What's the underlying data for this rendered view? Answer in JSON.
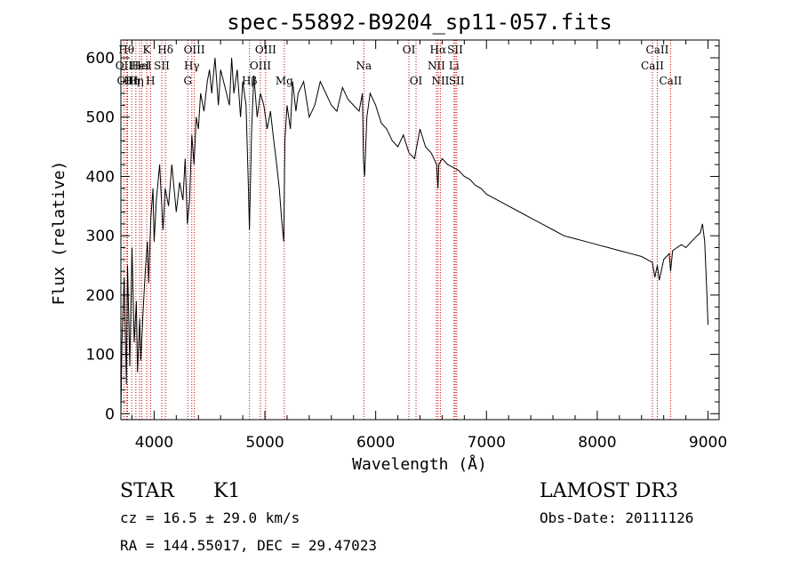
{
  "chart_data": {
    "type": "line",
    "title": "spec-55892-B9204_sp11-057.fits",
    "xlabel": "Wavelength (Å)",
    "ylabel": "Flux (relative)",
    "xlim": [
      3700,
      9100
    ],
    "ylim": [
      -10,
      630
    ],
    "xticks": [
      4000,
      5000,
      6000,
      7000,
      8000,
      9000
    ],
    "yticks": [
      0,
      100,
      200,
      300,
      400,
      500,
      600
    ],
    "grid": false,
    "series": [
      {
        "color": "#000000",
        "x": [
          3700,
          3710,
          3730,
          3750,
          3760,
          3780,
          3800,
          3820,
          3840,
          3850,
          3870,
          3880,
          3900,
          3920,
          3940,
          3950,
          3970,
          3990,
          4000,
          4020,
          4050,
          4080,
          4100,
          4130,
          4160,
          4200,
          4230,
          4260,
          4280,
          4300,
          4320,
          4340,
          4360,
          4380,
          4400,
          4420,
          4450,
          4480,
          4500,
          4520,
          4550,
          4580,
          4600,
          4640,
          4680,
          4700,
          4720,
          4750,
          4780,
          4800,
          4830,
          4850,
          4860,
          4880,
          4900,
          4930,
          4960,
          4990,
          5020,
          5050,
          5080,
          5100,
          5130,
          5150,
          5170,
          5180,
          5200,
          5230,
          5250,
          5280,
          5300,
          5350,
          5400,
          5450,
          5500,
          5550,
          5600,
          5650,
          5700,
          5750,
          5800,
          5850,
          5880,
          5890,
          5900,
          5920,
          5950,
          6000,
          6050,
          6100,
          6150,
          6200,
          6250,
          6300,
          6350,
          6400,
          6450,
          6500,
          6550,
          6562,
          6570,
          6600,
          6650,
          6700,
          6750,
          6800,
          6850,
          6900,
          6950,
          7000,
          7100,
          7200,
          7300,
          7400,
          7500,
          7600,
          7700,
          7800,
          7900,
          8000,
          8100,
          8200,
          8300,
          8400,
          8450,
          8498,
          8520,
          8542,
          8560,
          8600,
          8650,
          8662,
          8680,
          8720,
          8760,
          8800,
          8850,
          8900,
          8930,
          8950,
          8970,
          8990,
          9000
        ],
        "y": [
          0,
          120,
          230,
          50,
          250,
          80,
          280,
          120,
          190,
          70,
          160,
          90,
          170,
          240,
          290,
          220,
          330,
          380,
          290,
          360,
          420,
          310,
          380,
          350,
          420,
          340,
          390,
          360,
          430,
          320,
          360,
          470,
          420,
          500,
          480,
          540,
          510,
          560,
          580,
          540,
          600,
          520,
          580,
          550,
          520,
          600,
          540,
          580,
          500,
          560,
          520,
          390,
          310,
          480,
          570,
          500,
          540,
          520,
          480,
          510,
          460,
          430,
          380,
          330,
          290,
          460,
          520,
          480,
          560,
          510,
          540,
          560,
          500,
          520,
          560,
          540,
          520,
          510,
          550,
          530,
          520,
          510,
          540,
          430,
          400,
          500,
          540,
          520,
          490,
          480,
          460,
          450,
          470,
          440,
          430,
          480,
          450,
          440,
          420,
          380,
          420,
          430,
          420,
          415,
          410,
          400,
          395,
          385,
          380,
          370,
          360,
          350,
          340,
          330,
          320,
          310,
          300,
          295,
          290,
          285,
          280,
          275,
          270,
          265,
          260,
          255,
          230,
          250,
          225,
          260,
          270,
          240,
          275,
          280,
          285,
          280,
          290,
          300,
          305,
          320,
          290,
          200,
          150
        ]
      }
    ],
    "annotations": [
      {
        "x": 3727,
        "label": "OII",
        "row": 1
      },
      {
        "x": 3750,
        "label": "Hθ",
        "row": 0
      },
      {
        "x": 3760,
        "label": "OIII",
        "row": 2
      },
      {
        "x": 3798,
        "label": "Hη",
        "row": 2
      },
      {
        "x": 3835,
        "label": "Hη",
        "row": 2
      },
      {
        "x": 3869,
        "label": "HeI",
        "row": 1
      },
      {
        "x": 3889,
        "label": "HeI",
        "row": 1
      },
      {
        "x": 3933,
        "label": "K",
        "row": 0
      },
      {
        "x": 3968,
        "label": "H",
        "row": 2
      },
      {
        "x": 4069,
        "label": "SII",
        "row": 1
      },
      {
        "x": 4102,
        "label": "Hδ",
        "row": 0
      },
      {
        "x": 4304,
        "label": "G",
        "row": 2
      },
      {
        "x": 4340,
        "label": "Hγ",
        "row": 1
      },
      {
        "x": 4363,
        "label": "OIII",
        "row": 0
      },
      {
        "x": 4861,
        "label": "Hβ",
        "row": 2
      },
      {
        "x": 4959,
        "label": "OIII",
        "row": 1
      },
      {
        "x": 5007,
        "label": "OIII",
        "row": 0
      },
      {
        "x": 5175,
        "label": "Mg",
        "row": 2
      },
      {
        "x": 5893,
        "label": "Na",
        "row": 1
      },
      {
        "x": 6300,
        "label": "OI",
        "row": 0
      },
      {
        "x": 6364,
        "label": "OI",
        "row": 2
      },
      {
        "x": 6548,
        "label": "NII",
        "row": 1
      },
      {
        "x": 6563,
        "label": "Hα",
        "row": 0
      },
      {
        "x": 6584,
        "label": "NII",
        "row": 2
      },
      {
        "x": 6707,
        "label": "Li",
        "row": 1
      },
      {
        "x": 6717,
        "label": "SII",
        "row": 0
      },
      {
        "x": 6731,
        "label": "SII",
        "row": 2
      },
      {
        "x": 8498,
        "label": "CaII",
        "row": 1
      },
      {
        "x": 8542,
        "label": "CaII",
        "row": 0
      },
      {
        "x": 8662,
        "label": "CaII",
        "row": 2
      }
    ]
  },
  "footer": {
    "object_class": "STAR",
    "subclass": "K1",
    "survey": "LAMOST DR3",
    "velocity": "cz = 16.5 ± 29.0 km/s",
    "obs_date": "Obs-Date: 20111126",
    "coords": "RA = 144.55017, DEC =  29.47023"
  }
}
